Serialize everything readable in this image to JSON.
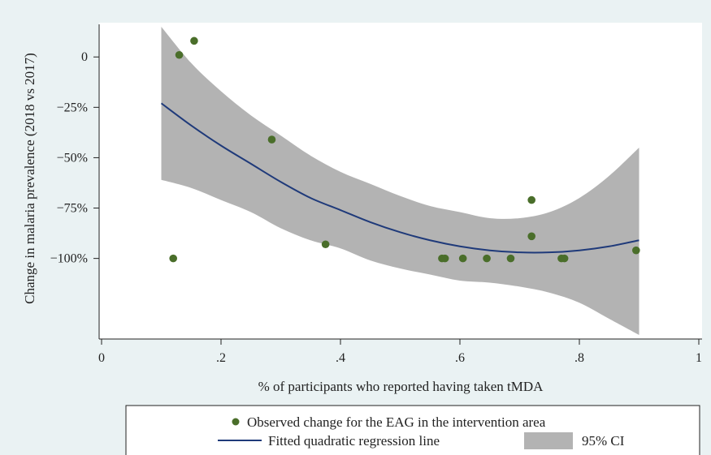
{
  "chart_data": {
    "type": "scatter",
    "title": "",
    "xlabel": "% of participants who reported having taken tMDA",
    "ylabel": "Change in malaria prevalence (2018 vs 2017)",
    "xlim": [
      0,
      1
    ],
    "ylim": [
      -140,
      17
    ],
    "x_ticks": [
      0,
      0.2,
      0.4,
      0.6,
      0.8,
      1
    ],
    "x_tick_labels": [
      "0",
      ".2",
      ".4",
      ".6",
      ".8",
      "1"
    ],
    "y_ticks": [
      0,
      -25,
      -50,
      -75,
      -100
    ],
    "y_tick_labels": [
      "0",
      "−25%",
      "−50%",
      "−75%",
      "−100%"
    ],
    "grid": false,
    "legend_position": "bottom",
    "series": [
      {
        "name": "Observed change for the EAG in the intervention area",
        "kind": "scatter",
        "color": "#4a6e2a",
        "points": [
          {
            "x": 0.12,
            "y": -100
          },
          {
            "x": 0.13,
            "y": 1
          },
          {
            "x": 0.155,
            "y": 8
          },
          {
            "x": 0.285,
            "y": -41
          },
          {
            "x": 0.375,
            "y": -93
          },
          {
            "x": 0.57,
            "y": -100
          },
          {
            "x": 0.575,
            "y": -100
          },
          {
            "x": 0.605,
            "y": -100
          },
          {
            "x": 0.645,
            "y": -100
          },
          {
            "x": 0.685,
            "y": -100
          },
          {
            "x": 0.72,
            "y": -71
          },
          {
            "x": 0.72,
            "y": -89
          },
          {
            "x": 0.77,
            "y": -100
          },
          {
            "x": 0.775,
            "y": -100
          },
          {
            "x": 0.895,
            "y": -96
          }
        ]
      },
      {
        "name": "Fitted quadratic regression line",
        "kind": "line",
        "color": "#1f3a7a",
        "x": [
          0.1,
          0.15,
          0.2,
          0.25,
          0.3,
          0.35,
          0.4,
          0.45,
          0.5,
          0.55,
          0.6,
          0.65,
          0.7,
          0.75,
          0.8,
          0.85,
          0.9
        ],
        "y": [
          -23,
          -34,
          -44,
          -53,
          -62,
          -70,
          -76,
          -82,
          -87,
          -91,
          -94,
          -96,
          -97,
          -97,
          -96,
          -94,
          -91
        ]
      },
      {
        "name": "95% CI",
        "kind": "band",
        "color": "#b3b3b3",
        "x": [
          0.1,
          0.15,
          0.2,
          0.25,
          0.3,
          0.35,
          0.4,
          0.45,
          0.5,
          0.55,
          0.6,
          0.65,
          0.7,
          0.75,
          0.8,
          0.85,
          0.9
        ],
        "upper": [
          15,
          -3,
          -17,
          -29,
          -39,
          -49,
          -57,
          -63,
          -69,
          -74,
          -77,
          -80,
          -80,
          -77,
          -70,
          -59,
          -45
        ],
        "lower": [
          -61,
          -65,
          -71,
          -77,
          -85,
          -91,
          -95,
          -101,
          -105,
          -108,
          -111,
          -112,
          -114,
          -117,
          -122,
          -130,
          -138
        ]
      }
    ]
  },
  "legend": {
    "items": [
      {
        "label": "Observed change for the EAG in the intervention area"
      },
      {
        "label": "Fitted quadratic regression line"
      },
      {
        "label": "95% CI"
      }
    ]
  }
}
